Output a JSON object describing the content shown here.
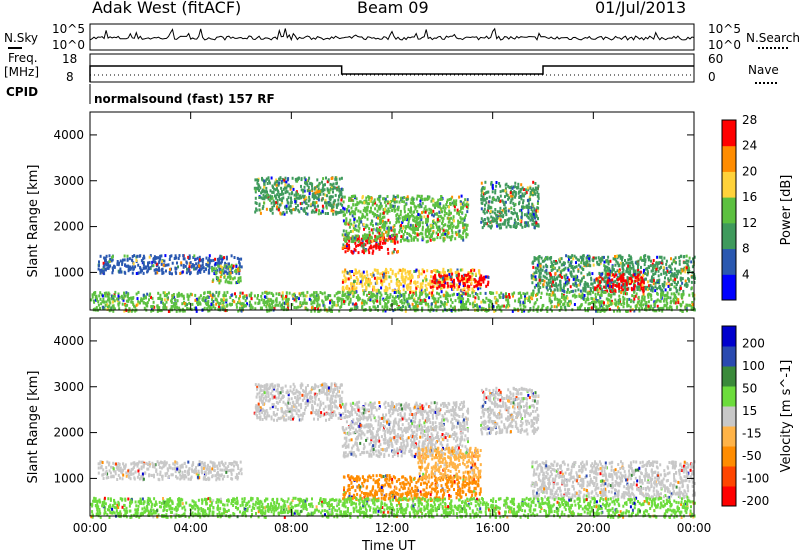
{
  "header": {
    "site": "Adak West (fitACF)",
    "beam": "Beam 09",
    "date": "01/Jul/2013"
  },
  "noise_panel": {
    "left_label": "N.Sky",
    "left_ticks": [
      "10^5",
      "10^0"
    ],
    "right_label": "N.Search",
    "right_ticks": [
      "10^5",
      "10^0"
    ]
  },
  "freq_panel": {
    "left_label_top": "Freq.",
    "left_label_unit": "[MHz]",
    "left_ticks": [
      "18",
      "8"
    ],
    "right_label": "Nave",
    "right_ticks": [
      "60",
      "0"
    ]
  },
  "cpid_panel": {
    "label": "CPID",
    "program": "normalsound (fast) 157 RF"
  },
  "colors": {
    "power_scale": [
      "#0000ff",
      "#2a58b0",
      "#3f9a5c",
      "#5cc040",
      "#ffd23a",
      "#ff8c00",
      "#ff0000"
    ],
    "velocity_scale": [
      "#ff0000",
      "#ff4500",
      "#ff8c00",
      "#ffb347",
      "#c8c8c8",
      "#6cdc3c",
      "#3a8a3a",
      "#2a4ab0",
      "#0000cd"
    ]
  },
  "chart_data": [
    {
      "type": "heatmap",
      "title": "",
      "xlabel": "Time UT",
      "ylabel": "Slant Range [km]",
      "xlim": [
        "00:00",
        "24:00"
      ],
      "ylim": [
        180,
        4500
      ],
      "x_ticks": [
        "00:00",
        "04:00",
        "08:00",
        "12:00",
        "16:00",
        "20:00",
        "00:00"
      ],
      "y_ticks": [
        1000,
        2000,
        3000,
        4000
      ],
      "colorbar": {
        "label": "Power [dB]",
        "ticks": [
          4,
          8,
          12,
          16,
          20,
          24,
          28
        ]
      },
      "echo_regions": [
        {
          "t_start": 0.3,
          "t_end": 6.0,
          "range_min": 1000,
          "range_max": 1400,
          "power_db": 6
        },
        {
          "t_start": 4.8,
          "t_end": 6.0,
          "range_min": 800,
          "range_max": 1200,
          "power_db": 12
        },
        {
          "t_start": 6.5,
          "t_end": 10.0,
          "range_min": 2300,
          "range_max": 3100,
          "power_db": 10
        },
        {
          "t_start": 10.0,
          "t_end": 12.2,
          "range_min": 1450,
          "range_max": 1850,
          "power_db": 28
        },
        {
          "t_start": 10.0,
          "t_end": 15.0,
          "range_min": 1700,
          "range_max": 2700,
          "power_db": 12
        },
        {
          "t_start": 10.0,
          "t_end": 15.5,
          "range_min": 600,
          "range_max": 1100,
          "power_db": 18
        },
        {
          "t_start": 13.5,
          "t_end": 15.8,
          "range_min": 700,
          "range_max": 1000,
          "power_db": 26
        },
        {
          "t_start": 15.5,
          "t_end": 17.8,
          "range_min": 2000,
          "range_max": 3000,
          "power_db": 10
        },
        {
          "t_start": 17.5,
          "t_end": 24.0,
          "range_min": 600,
          "range_max": 1400,
          "power_db": 10
        },
        {
          "t_start": 20.0,
          "t_end": 22.0,
          "range_min": 600,
          "range_max": 1000,
          "power_db": 26
        },
        {
          "t_start": 0.0,
          "t_end": 24.0,
          "range_min": 180,
          "range_max": 600,
          "power_db": 14
        }
      ]
    },
    {
      "type": "heatmap",
      "title": "",
      "xlabel": "Time UT",
      "ylabel": "Slant Range [km]",
      "xlim": [
        "00:00",
        "24:00"
      ],
      "ylim": [
        180,
        4500
      ],
      "x_ticks": [
        "00:00",
        "04:00",
        "08:00",
        "12:00",
        "16:00",
        "20:00",
        "00:00"
      ],
      "y_ticks": [
        1000,
        2000,
        3000,
        4000
      ],
      "colorbar": {
        "label": "Velocity [m s^-1]",
        "ticks": [
          200,
          100,
          50,
          15,
          -15,
          -50,
          -100,
          -200
        ]
      },
      "echo_regions": [
        {
          "t_start": 0.3,
          "t_end": 6.0,
          "range_min": 1000,
          "range_max": 1400,
          "velocity": 0
        },
        {
          "t_start": 6.5,
          "t_end": 10.0,
          "range_min": 2300,
          "range_max": 3100,
          "velocity": 0
        },
        {
          "t_start": 10.0,
          "t_end": 15.0,
          "range_min": 1500,
          "range_max": 2700,
          "velocity": 0
        },
        {
          "t_start": 10.0,
          "t_end": 15.5,
          "range_min": 550,
          "range_max": 1100,
          "velocity": -60
        },
        {
          "t_start": 13.0,
          "t_end": 15.5,
          "range_min": 1000,
          "range_max": 1700,
          "velocity": -40
        },
        {
          "t_start": 15.5,
          "t_end": 17.8,
          "range_min": 2000,
          "range_max": 3000,
          "velocity": 0
        },
        {
          "t_start": 17.5,
          "t_end": 24.0,
          "range_min": 600,
          "range_max": 1400,
          "velocity": 0
        },
        {
          "t_start": 0.0,
          "t_end": 24.0,
          "range_min": 180,
          "range_max": 600,
          "velocity": 20
        }
      ]
    }
  ]
}
